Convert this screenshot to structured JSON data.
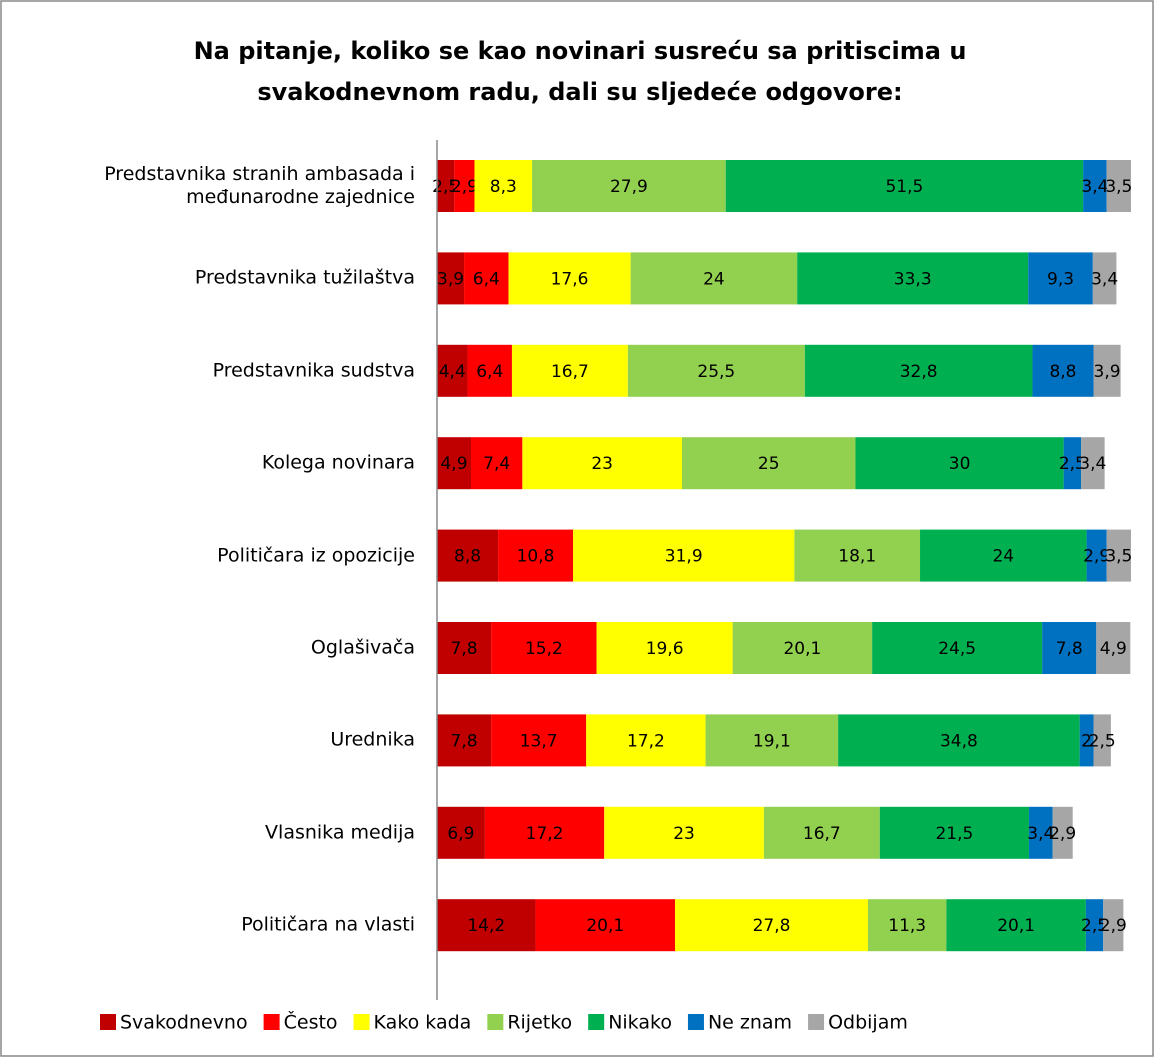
{
  "chart_data": {
    "type": "stacked-bar",
    "orientation": "horizontal",
    "title": [
      "Na pitanje, koliko se  kao novinari susreću sa pritiscima u",
      "svakodnevnom radu, dali su sljedeće odgovore:"
    ],
    "categories": [
      "Predstavnika stranih ambasada i međunarodne zajednice",
      "Predstavnika tužilaštva",
      "Predstavnika sudstva",
      "Kolega novinara",
      "Političara iz opozicije",
      "Oglašivača",
      "Urednika",
      "Vlasnika medija",
      "Političara na vlasti"
    ],
    "xlim": [
      0,
      100
    ],
    "legend": "bottom",
    "series": [
      {
        "name": "Svakodnevno",
        "color": "#c00000",
        "values": [
          2.5,
          3.9,
          4.4,
          4.9,
          8.8,
          7.8,
          7.8,
          6.9,
          14.2
        ],
        "value_labels": [
          "2,5",
          "3,9",
          "4,4",
          "4,9",
          "8,8",
          "7,8",
          "7,8",
          "6,9",
          "14,2"
        ]
      },
      {
        "name": "Često",
        "color": "#ff0000",
        "values": [
          2.9,
          6.4,
          6.4,
          7.4,
          10.8,
          15.2,
          13.7,
          17.2,
          20.1
        ],
        "value_labels": [
          "2,9",
          "6,4",
          "6,4",
          "7,4",
          "10,8",
          "15,2",
          "13,7",
          "17,2",
          "20,1"
        ]
      },
      {
        "name": "Kako kada",
        "color": "#ffff00",
        "values": [
          8.3,
          17.6,
          16.7,
          23,
          31.9,
          19.6,
          17.2,
          23,
          27.8
        ],
        "value_labels": [
          "8,3",
          "17,6",
          "16,7",
          "23",
          "31,9",
          "19,6",
          "17,2",
          "23",
          "27,8"
        ]
      },
      {
        "name": "Rijetko",
        "color": "#92d050",
        "values": [
          27.9,
          24,
          25.5,
          25,
          18.1,
          20.1,
          19.1,
          16.7,
          11.3
        ],
        "value_labels": [
          "27,9",
          "24",
          "25,5",
          "25",
          "18,1",
          "20,1",
          "19,1",
          "16,7",
          "11,3"
        ]
      },
      {
        "name": "Nikako",
        "color": "#00b050",
        "values": [
          51.5,
          33.3,
          32.8,
          30,
          24,
          24.5,
          34.8,
          21.5,
          20.1
        ],
        "value_labels": [
          "51,5",
          "33,3",
          "32,8",
          "30",
          "24",
          "24,5",
          "34,8",
          "21,5",
          "20,1"
        ]
      },
      {
        "name": "Ne znam",
        "color": "#0070c0",
        "values": [
          3.4,
          9.3,
          8.8,
          2.5,
          2.9,
          7.8,
          2,
          3.4,
          2.5
        ],
        "value_labels": [
          "3,4",
          "9,3",
          "8,8",
          "2,5",
          "2,9",
          "7,8",
          "2",
          "3,4",
          "2,5"
        ]
      },
      {
        "name": "Odbijam",
        "color": "#a6a6a6",
        "values": [
          3.5,
          3.4,
          3.9,
          3.4,
          3.5,
          4.9,
          2.5,
          2.9,
          2.9
        ],
        "value_labels": [
          "3,5",
          "3,4",
          "3,9",
          "3,4",
          "3,5",
          "4,9",
          "2,5",
          "2,9",
          "2,9"
        ]
      }
    ]
  }
}
